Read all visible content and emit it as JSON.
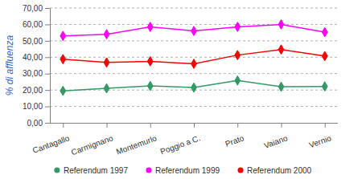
{
  "chart_data": {
    "type": "line",
    "y_label": "% di affluenza",
    "categories": [
      "Cantagallo",
      "Carmignano",
      "Montemurlo",
      "Poggio a C.",
      "Prato",
      "Vaiano",
      "Vernio"
    ],
    "series": [
      {
        "name": "Referendum 1997",
        "color": "#339966",
        "marker": "diamond",
        "values": [
          19.5,
          21.0,
          22.5,
          21.5,
          25.8,
          22.0,
          22.2
        ]
      },
      {
        "name": "Referendum 1999",
        "color": "#ff00ff",
        "marker": "diamond",
        "values": [
          53.0,
          54.0,
          58.5,
          56.0,
          58.5,
          60.0,
          55.3
        ]
      },
      {
        "name": "Referendum 2000",
        "color": "#ff0000",
        "marker": "diamond",
        "values": [
          38.8,
          36.8,
          37.5,
          36.0,
          41.3,
          44.7,
          40.7
        ]
      }
    ],
    "ylim": [
      0,
      70
    ],
    "yticks": [
      {
        "value": 0,
        "label": "0,00"
      },
      {
        "value": 10,
        "label": "10,00"
      },
      {
        "value": 20,
        "label": "20,00"
      },
      {
        "value": 30,
        "label": "30,00"
      },
      {
        "value": 40,
        "label": "40,00"
      },
      {
        "value": 50,
        "label": "50,00"
      },
      {
        "value": 60,
        "label": "60,00"
      },
      {
        "value": 70,
        "label": "70,00"
      }
    ],
    "grid": true,
    "legend": "bottom"
  }
}
